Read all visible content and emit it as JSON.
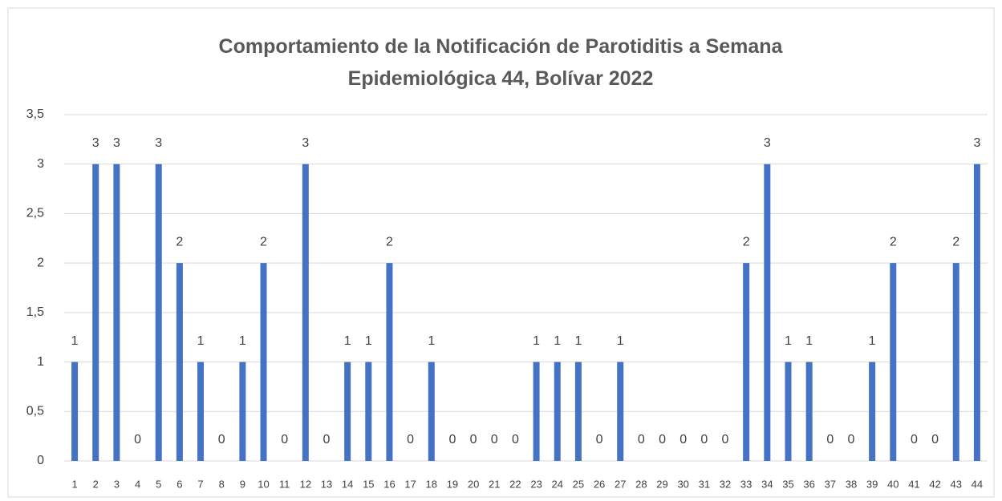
{
  "chart_data": {
    "type": "bar",
    "title": "Comportamiento de la Notificación de Parotiditis a Semana Epidemiológica 44, Bolívar 2022",
    "categories": [
      "1",
      "2",
      "3",
      "4",
      "5",
      "6",
      "7",
      "8",
      "9",
      "10",
      "11",
      "12",
      "13",
      "14",
      "15",
      "16",
      "17",
      "18",
      "19",
      "20",
      "21",
      "22",
      "23",
      "24",
      "25",
      "26",
      "27",
      "28",
      "29",
      "30",
      "31",
      "32",
      "33",
      "34",
      "35",
      "36",
      "37",
      "38",
      "39",
      "40",
      "41",
      "42",
      "43",
      "44"
    ],
    "values": [
      1,
      3,
      3,
      0,
      3,
      2,
      1,
      0,
      1,
      2,
      0,
      3,
      0,
      1,
      1,
      2,
      0,
      1,
      0,
      0,
      0,
      0,
      1,
      1,
      1,
      0,
      1,
      0,
      0,
      0,
      0,
      0,
      2,
      3,
      1,
      1,
      0,
      0,
      1,
      2,
      0,
      0,
      2,
      3
    ],
    "color": "#4472c4",
    "ylim": [
      0,
      3.5
    ],
    "yticks": [
      0,
      {
        "value": 0.5,
        "label": "0,5"
      },
      1,
      {
        "value": 1.5,
        "label": "1,5"
      },
      2,
      {
        "value": 2.5,
        "label": "2,5"
      },
      3,
      {
        "value": 3.5,
        "label": "3,5"
      }
    ],
    "grid": true
  }
}
